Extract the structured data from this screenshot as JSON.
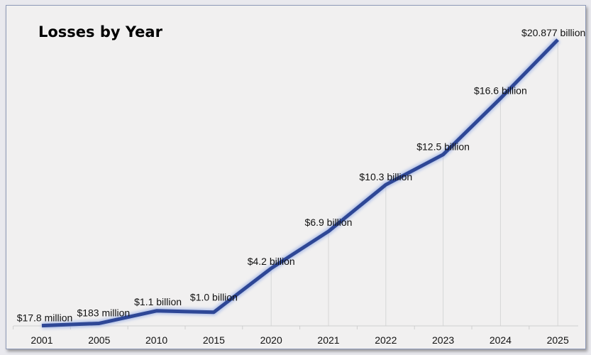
{
  "chart_data": {
    "type": "line",
    "title": "Losses by Year",
    "xlabel": "",
    "ylabel": "",
    "categories": [
      "2001",
      "2005",
      "2010",
      "2015",
      "2020",
      "2021",
      "2022",
      "2023",
      "2024",
      "2025"
    ],
    "series": [
      {
        "values": [
          0.0178,
          0.183,
          1.1,
          1.0,
          4.2,
          6.9,
          10.3,
          12.5,
          16.6,
          20.877
        ],
        "unit": "billion USD"
      }
    ],
    "data_labels": [
      "$17.8 million",
      "$183 million",
      "$1.1 billion",
      "$1.0 billion",
      "$4.2 billion",
      "$6.9 billion",
      "$10.3 billion",
      "$12.5 billion",
      "$16.6 billion",
      "$20.877 billion"
    ],
    "ylim": [
      0,
      21.5
    ],
    "grid": false,
    "drop_lines": true,
    "legend": "none",
    "colors": {
      "line": "#2e4796",
      "background": "#f1f0f0",
      "drop_line": "#d6d6d6"
    }
  }
}
